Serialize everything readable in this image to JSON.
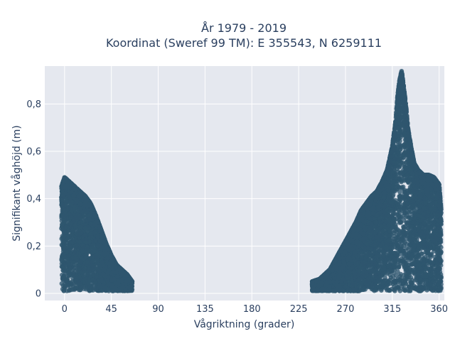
{
  "chart_data": {
    "type": "scatter",
    "title_line1": "År 1979 - 2019",
    "title_line2": "Koordinat (Sweref 99 TM): E 355543, N 6259111",
    "xlabel": "Vågriktning (grader)",
    "ylabel": "Signifikant våghöjd (m)",
    "xlim": [
      -19,
      365
    ],
    "ylim": [
      -0.03,
      0.96
    ],
    "x_ticks": [
      0,
      45,
      90,
      135,
      180,
      225,
      270,
      315,
      360
    ],
    "x_tick_labels": [
      "0",
      "45",
      "90",
      "135",
      "180",
      "225",
      "270",
      "315",
      "360"
    ],
    "y_ticks": [
      0,
      0.2,
      0.4,
      0.6,
      0.8
    ],
    "y_tick_labels": [
      "0",
      "0,2",
      "0,4",
      "0,6",
      "0,8"
    ],
    "grid": true,
    "background": "#e5e8ef",
    "marker_color": "#2e566e",
    "clusters": [
      {
        "x_range": [
          -3,
          65
        ],
        "y_min": 0.01,
        "envelope": [
          [
            -3,
            0.45
          ],
          [
            0,
            0.49
          ],
          [
            5,
            0.47
          ],
          [
            10,
            0.45
          ],
          [
            15,
            0.43
          ],
          [
            20,
            0.41
          ],
          [
            25,
            0.38
          ],
          [
            30,
            0.33
          ],
          [
            35,
            0.27
          ],
          [
            40,
            0.21
          ],
          [
            45,
            0.16
          ],
          [
            50,
            0.12
          ],
          [
            55,
            0.1
          ],
          [
            60,
            0.08
          ],
          [
            65,
            0.05
          ]
        ]
      },
      {
        "x_range": [
          238,
          362
        ],
        "y_min": 0.01,
        "envelope": [
          [
            238,
            0.05
          ],
          [
            245,
            0.06
          ],
          [
            250,
            0.08
          ],
          [
            255,
            0.1
          ],
          [
            260,
            0.14
          ],
          [
            265,
            0.18
          ],
          [
            270,
            0.22
          ],
          [
            275,
            0.26
          ],
          [
            280,
            0.3
          ],
          [
            285,
            0.35
          ],
          [
            290,
            0.38
          ],
          [
            295,
            0.41
          ],
          [
            300,
            0.43
          ],
          [
            305,
            0.47
          ],
          [
            310,
            0.52
          ],
          [
            315,
            0.62
          ],
          [
            318,
            0.72
          ],
          [
            320,
            0.83
          ],
          [
            322,
            0.9
          ],
          [
            324,
            0.94
          ],
          [
            326,
            0.87
          ],
          [
            328,
            0.8
          ],
          [
            330,
            0.7
          ],
          [
            333,
            0.62
          ],
          [
            336,
            0.55
          ],
          [
            340,
            0.52
          ],
          [
            345,
            0.5
          ],
          [
            350,
            0.5
          ],
          [
            355,
            0.49
          ],
          [
            360,
            0.46
          ],
          [
            362,
            0.35
          ]
        ]
      }
    ],
    "points_per_cluster": [
      2600,
      5200
    ]
  }
}
